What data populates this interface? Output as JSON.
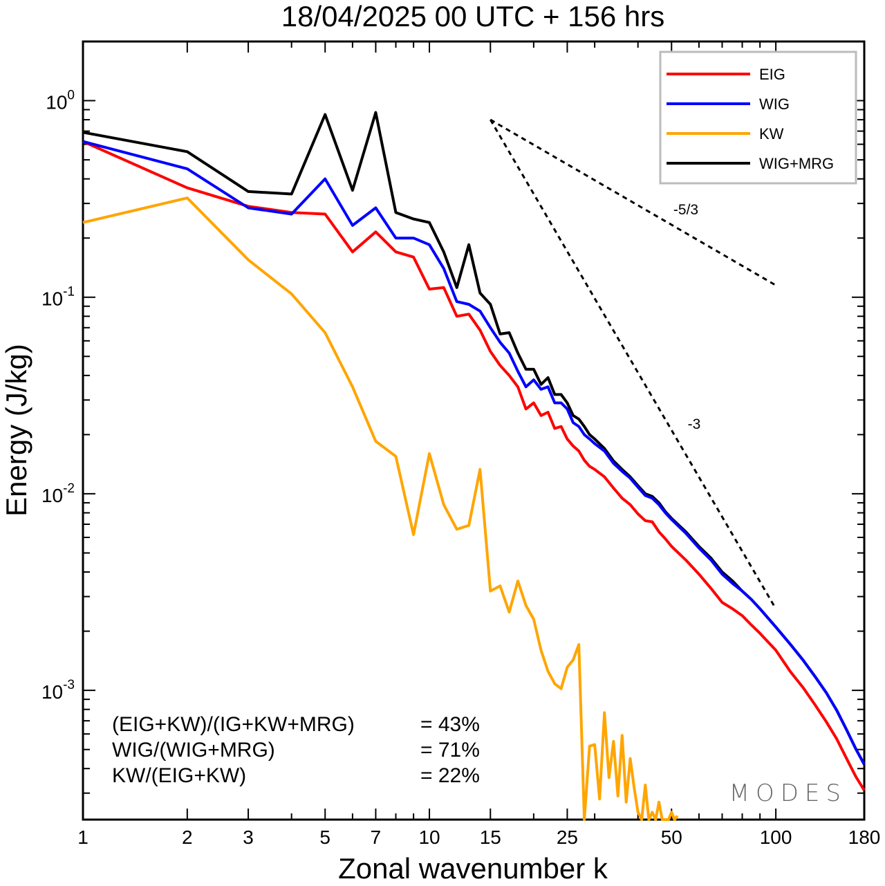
{
  "chart_data": {
    "type": "line",
    "title": "18/04/2025  00 UTC  + 156 hrs",
    "xlabel": "Zonal wavenumber k",
    "ylabel": "Energy (J/kg)",
    "xscale": "log",
    "yscale": "log",
    "xlim": [
      1,
      180
    ],
    "ylim": [
      0.00022,
      2.0
    ],
    "grid": false,
    "legend_position": "top-right",
    "x_ticks": [
      {
        "value": 1,
        "label": "1"
      },
      {
        "value": 2,
        "label": "2"
      },
      {
        "value": 3,
        "label": "3"
      },
      {
        "value": 5,
        "label": "5"
      },
      {
        "value": 7,
        "label": "7"
      },
      {
        "value": 10,
        "label": "10"
      },
      {
        "value": 15,
        "label": "15"
      },
      {
        "value": 25,
        "label": "25"
      },
      {
        "value": 50,
        "label": "50"
      },
      {
        "value": 100,
        "label": "100"
      },
      {
        "value": 180,
        "label": "180"
      }
    ],
    "y_ticks": [
      {
        "value": 1,
        "base": "10",
        "exp": "0"
      },
      {
        "value": 0.1,
        "base": "10",
        "exp": "-1"
      },
      {
        "value": 0.01,
        "base": "10",
        "exp": "-2"
      },
      {
        "value": 0.001,
        "base": "10",
        "exp": "-3"
      }
    ],
    "series": [
      {
        "name": "EIG",
        "color": "#ff0000",
        "x": [
          1,
          2,
          3,
          4,
          5,
          6,
          7,
          8,
          9,
          10,
          11,
          12,
          13,
          14,
          15,
          16,
          17,
          18,
          19,
          20,
          21,
          22,
          23,
          24,
          25,
          26,
          27,
          28,
          29,
          30,
          32,
          34,
          36,
          38,
          40,
          42,
          44,
          46,
          48,
          50,
          55,
          60,
          65,
          70,
          75,
          80,
          85,
          90,
          100,
          110,
          120,
          130,
          140,
          150,
          160,
          170,
          180
        ],
        "y": [
          0.62,
          0.36,
          0.29,
          0.27,
          0.265,
          0.17,
          0.215,
          0.17,
          0.16,
          0.11,
          0.112,
          0.08,
          0.082,
          0.068,
          0.053,
          0.045,
          0.04,
          0.035,
          0.027,
          0.029,
          0.025,
          0.026,
          0.0215,
          0.022,
          0.019,
          0.0175,
          0.0165,
          0.0148,
          0.0138,
          0.0133,
          0.0122,
          0.0107,
          0.0095,
          0.0088,
          0.0079,
          0.0073,
          0.0072,
          0.0064,
          0.0059,
          0.0054,
          0.0046,
          0.0039,
          0.0033,
          0.0028,
          0.0026,
          0.0024,
          0.00215,
          0.00195,
          0.0016,
          0.00125,
          0.00103,
          0.00084,
          0.00069,
          0.000565,
          0.00045,
          0.000365,
          0.00031
        ]
      },
      {
        "name": "WIG",
        "color": "#0000ff",
        "x": [
          1,
          2,
          3,
          4,
          5,
          6,
          7,
          8,
          9,
          10,
          11,
          12,
          13,
          14,
          15,
          16,
          17,
          18,
          19,
          20,
          21,
          22,
          23,
          24,
          25,
          26,
          27,
          28,
          29,
          30,
          32,
          34,
          36,
          38,
          40,
          42,
          44,
          46,
          48,
          50,
          55,
          60,
          65,
          70,
          75,
          80,
          85,
          90,
          100,
          110,
          120,
          130,
          140,
          150,
          160,
          170,
          180
        ],
        "y": [
          0.62,
          0.45,
          0.285,
          0.265,
          0.4,
          0.232,
          0.285,
          0.2,
          0.2,
          0.185,
          0.14,
          0.095,
          0.092,
          0.085,
          0.07,
          0.059,
          0.052,
          0.042,
          0.035,
          0.038,
          0.034,
          0.035,
          0.029,
          0.029,
          0.027,
          0.023,
          0.022,
          0.02,
          0.019,
          0.018,
          0.0165,
          0.0143,
          0.013,
          0.012,
          0.0108,
          0.0098,
          0.0095,
          0.0088,
          0.008,
          0.0074,
          0.0063,
          0.0053,
          0.0046,
          0.0039,
          0.0035,
          0.0032,
          0.0029,
          0.0026,
          0.0021,
          0.00172,
          0.00142,
          0.00117,
          0.00097,
          0.00079,
          0.00063,
          0.000505,
          0.00042
        ]
      },
      {
        "name": "KW",
        "color": "#ffa500",
        "x": [
          1,
          2,
          3,
          4,
          5,
          6,
          7,
          8,
          9,
          10,
          11,
          12,
          13,
          14,
          15,
          16,
          17,
          18,
          19,
          20,
          21,
          22,
          23,
          24,
          25,
          26,
          27,
          28,
          29,
          30,
          31,
          32,
          33,
          34,
          35,
          36,
          37,
          38,
          39,
          40,
          41,
          42,
          43,
          44,
          45,
          46,
          47,
          48,
          49,
          50,
          51,
          52
        ],
        "y": [
          0.24,
          0.32,
          0.155,
          0.104,
          0.066,
          0.035,
          0.0185,
          0.0155,
          0.0062,
          0.016,
          0.0088,
          0.0066,
          0.0069,
          0.0133,
          0.0032,
          0.0034,
          0.0025,
          0.0036,
          0.0027,
          0.0023,
          0.0016,
          0.00125,
          0.00108,
          0.00102,
          0.00131,
          0.00143,
          0.00171,
          0.0002,
          0.00052,
          0.00053,
          0.00028,
          0.00077,
          0.00036,
          0.00055,
          0.00029,
          0.00059,
          0.00027,
          0.00045,
          0.00032,
          0.00024,
          0.0002,
          0.00033,
          0.00019,
          0.00024,
          0.0002,
          0.00027,
          0.00019,
          0.00022,
          0.00017,
          0.00024,
          0.00019,
          0.00023
        ]
      },
      {
        "name": "WIG+MRG",
        "color": "#000000",
        "x": [
          1,
          2,
          3,
          4,
          5,
          6,
          7,
          8,
          9,
          10,
          11,
          12,
          13,
          14,
          15,
          16,
          17,
          18,
          19,
          20,
          21,
          22,
          23,
          24,
          25,
          26,
          27,
          28,
          29,
          30,
          32,
          34,
          36,
          38,
          40,
          42,
          44,
          46,
          48,
          50,
          55,
          60,
          65,
          70,
          75,
          80,
          85,
          90,
          100,
          110,
          120,
          130,
          140,
          150,
          160,
          170,
          180
        ],
        "y": [
          0.69,
          0.55,
          0.345,
          0.335,
          0.85,
          0.35,
          0.87,
          0.27,
          0.25,
          0.24,
          0.17,
          0.112,
          0.185,
          0.105,
          0.092,
          0.065,
          0.066,
          0.052,
          0.043,
          0.043,
          0.036,
          0.039,
          0.032,
          0.032,
          0.029,
          0.025,
          0.024,
          0.022,
          0.02,
          0.019,
          0.017,
          0.0147,
          0.0133,
          0.0122,
          0.011,
          0.01,
          0.0097,
          0.009,
          0.0081,
          0.0075,
          0.0064,
          0.0054,
          0.0047,
          0.004,
          0.0036,
          0.0032,
          0.0029,
          0.0026,
          0.0021,
          0.00172,
          0.00142,
          0.00117,
          0.00097,
          0.00079,
          0.00063,
          0.000505,
          0.00042
        ]
      }
    ],
    "reference_slopes": [
      {
        "label": "-5/3",
        "x": [
          15,
          100
        ],
        "y": [
          0.8,
          0.115
        ]
      },
      {
        "label": "-3",
        "x": [
          15,
          100
        ],
        "y": [
          0.8,
          0.0026
        ]
      }
    ],
    "annotations": {
      "stats": [
        {
          "label": "(EIG+KW)/(IG+KW+MRG)",
          "value": "= 43%"
        },
        {
          "label": "WIG/(WIG+MRG)",
          "value": "= 71%"
        },
        {
          "label": "KW/(EIG+KW)",
          "value": "= 22%"
        }
      ],
      "watermark": "MODES"
    }
  }
}
